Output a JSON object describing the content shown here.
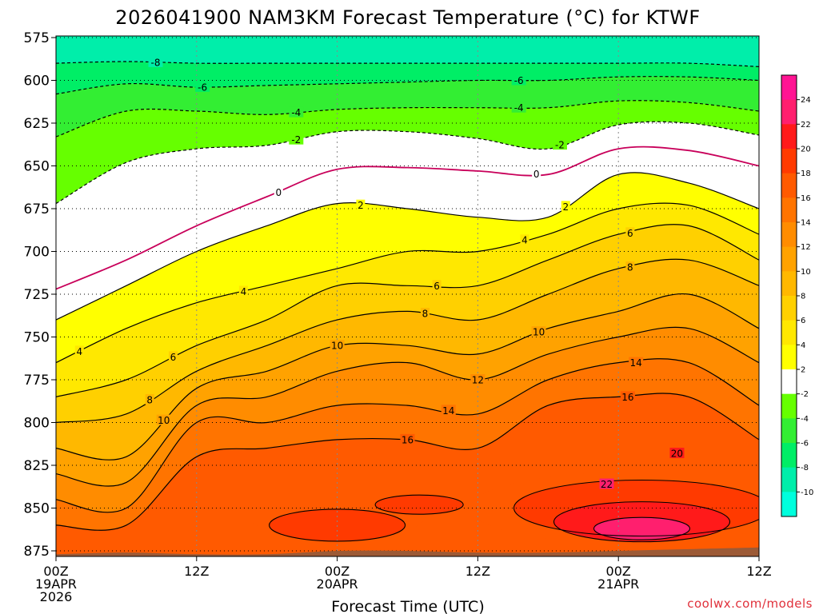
{
  "chart_data": {
    "type": "heatmap",
    "title": "2026041900 NAM3KM Forecast Temperature (°C) for KTWF",
    "xlabel": "Forecast Time (UTC)",
    "ylabel": "",
    "credit": "coolwx.com/models",
    "y_axis": {
      "unit": "hPa",
      "range": [
        875,
        575
      ],
      "ticks": [
        "575",
        "600",
        "625",
        "650",
        "675",
        "700",
        "725",
        "750",
        "775",
        "800",
        "825",
        "850",
        "875"
      ]
    },
    "x_axis": {
      "range_hours": [
        0,
        60
      ],
      "ticks": [
        {
          "hour": 0,
          "label": "00Z",
          "sub1": "19APR",
          "sub2": "2026"
        },
        {
          "hour": 12,
          "label": "12Z",
          "sub1": "",
          "sub2": ""
        },
        {
          "hour": 24,
          "label": "00Z",
          "sub1": "20APR",
          "sub2": ""
        },
        {
          "hour": 36,
          "label": "12Z",
          "sub1": "",
          "sub2": ""
        },
        {
          "hour": 48,
          "label": "00Z",
          "sub1": "21APR",
          "sub2": ""
        },
        {
          "hour": 60,
          "label": "12Z",
          "sub1": "",
          "sub2": ""
        }
      ]
    },
    "hours": [
      0,
      6,
      12,
      18,
      24,
      30,
      36,
      42,
      48,
      54,
      60
    ],
    "isotherms_hpa": [
      {
        "temp": -8,
        "p": [
          590,
          589,
          590,
          590,
          590,
          590,
          590,
          590,
          590,
          590,
          592
        ]
      },
      {
        "temp": -6,
        "p": [
          608,
          602,
          604,
          603,
          602,
          601,
          600,
          600,
          598,
          598,
          600
        ]
      },
      {
        "temp": -4,
        "p": [
          633,
          618,
          618,
          620,
          617,
          616,
          616,
          616,
          612,
          613,
          618
        ]
      },
      {
        "temp": -2,
        "p": [
          672,
          648,
          640,
          638,
          630,
          630,
          634,
          640,
          626,
          625,
          632
        ]
      },
      {
        "temp": 0,
        "p": [
          722,
          705,
          685,
          668,
          652,
          651,
          653,
          655,
          640,
          641,
          650
        ]
      },
      {
        "temp": 2,
        "p": [
          740,
          720,
          700,
          685,
          672,
          675,
          680,
          680,
          655,
          660,
          675
        ]
      },
      {
        "temp": 4,
        "p": [
          765,
          745,
          730,
          720,
          710,
          700,
          700,
          690,
          675,
          673,
          690
        ]
      },
      {
        "temp": 6,
        "p": [
          785,
          775,
          755,
          740,
          720,
          720,
          720,
          705,
          690,
          685,
          705
        ]
      },
      {
        "temp": 8,
        "p": [
          800,
          795,
          770,
          755,
          740,
          735,
          740,
          725,
          710,
          705,
          720
        ]
      },
      {
        "temp": 10,
        "p": [
          815,
          820,
          780,
          770,
          755,
          755,
          760,
          745,
          735,
          725,
          745
        ]
      },
      {
        "temp": 12,
        "p": [
          830,
          835,
          790,
          785,
          770,
          765,
          775,
          760,
          750,
          745,
          765
        ]
      },
      {
        "temp": 14,
        "p": [
          845,
          850,
          800,
          800,
          790,
          790,
          795,
          775,
          765,
          765,
          790
        ]
      },
      {
        "temp": 16,
        "p": [
          860,
          860,
          820,
          815,
          810,
          810,
          815,
          790,
          785,
          785,
          810
        ]
      }
    ],
    "isotherm_labels": [
      {
        "temp": "-8",
        "hour": 8.5
      },
      {
        "temp": "-6",
        "hour": 12.5
      },
      {
        "temp": "-6",
        "hour": 39.5
      },
      {
        "temp": "-4",
        "hour": 20.5
      },
      {
        "temp": "-4",
        "hour": 39.5
      },
      {
        "temp": "-2",
        "hour": 20.5
      },
      {
        "temp": "-2",
        "hour": 43
      },
      {
        "temp": "0",
        "hour": 19
      },
      {
        "temp": "0",
        "hour": 41
      },
      {
        "temp": "2",
        "hour": 26
      },
      {
        "temp": "2",
        "hour": 43.5
      },
      {
        "temp": "4",
        "hour": 2
      },
      {
        "temp": "4",
        "hour": 16
      },
      {
        "temp": "4",
        "hour": 40
      },
      {
        "temp": "6",
        "hour": 10
      },
      {
        "temp": "6",
        "hour": 32.5
      },
      {
        "temp": "6",
        "hour": 49
      },
      {
        "temp": "8",
        "hour": 8
      },
      {
        "temp": "8",
        "hour": 31.5
      },
      {
        "temp": "8",
        "hour": 49
      },
      {
        "temp": "10",
        "hour": 9.2
      },
      {
        "temp": "10",
        "hour": 24
      },
      {
        "temp": "10",
        "hour": 41.2
      },
      {
        "temp": "12",
        "hour": 36
      },
      {
        "temp": "14",
        "hour": 33.5
      },
      {
        "temp": "14",
        "hour": 49.5
      },
      {
        "temp": "16",
        "hour": 30
      },
      {
        "temp": "16",
        "hour": 48.8
      },
      {
        "temp": "20",
        "hour": 53
      },
      {
        "temp": "22",
        "hour": 47
      }
    ],
    "surface_hpa": [
      877,
      876,
      877,
      877,
      875,
      875,
      876,
      876,
      875,
      874,
      873
    ],
    "colorbar": {
      "ticks": [
        "24",
        "22",
        "20",
        "18",
        "16",
        "14",
        "12",
        "10",
        "8",
        "6",
        "4",
        "2",
        "-2",
        "-4",
        "-6",
        "-8",
        "-10"
      ],
      "bins": [
        {
          "from": 24,
          "to": 26,
          "color": "#ff1493"
        },
        {
          "from": 22,
          "to": 24,
          "color": "#ff1f6e"
        },
        {
          "from": 20,
          "to": 22,
          "color": "#ff1a1a"
        },
        {
          "from": 18,
          "to": 20,
          "color": "#ff3a00"
        },
        {
          "from": 16,
          "to": 18,
          "color": "#ff5a00"
        },
        {
          "from": 14,
          "to": 16,
          "color": "#ff7400"
        },
        {
          "from": 12,
          "to": 14,
          "color": "#ff8c00"
        },
        {
          "from": 10,
          "to": 12,
          "color": "#ffa200"
        },
        {
          "from": 8,
          "to": 10,
          "color": "#ffb800"
        },
        {
          "from": 6,
          "to": 8,
          "color": "#ffd000"
        },
        {
          "from": 4,
          "to": 6,
          "color": "#ffe800"
        },
        {
          "from": 2,
          "to": 4,
          "color": "#ffff00"
        },
        {
          "from": -2,
          "to": 2,
          "color": "#ffffff"
        },
        {
          "from": -4,
          "to": -2,
          "color": "#66ff00"
        },
        {
          "from": -6,
          "to": -4,
          "color": "#33ee33"
        },
        {
          "from": -8,
          "to": -6,
          "color": "#00ee66"
        },
        {
          "from": -10,
          "to": -8,
          "color": "#00eeaa"
        },
        {
          "from": -12,
          "to": -10,
          "color": "#00ffdd"
        }
      ]
    },
    "colors": {
      "surface": "#9c5a36",
      "zero_line": "#c8005a",
      "warm_line": "#000000",
      "cold_line": "#000000"
    }
  }
}
